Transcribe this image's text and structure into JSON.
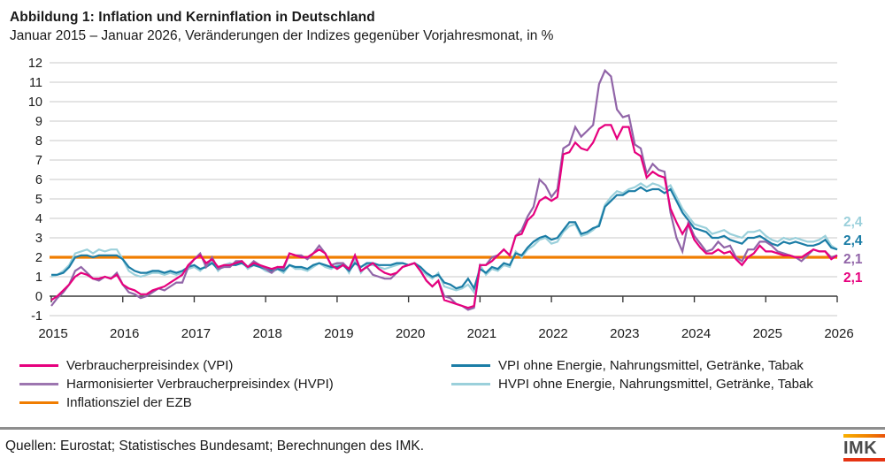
{
  "header": {
    "title": "Abbildung 1: Inflation und Kerninflation in Deutschland",
    "subtitle": "Januar 2015 – Januar 2026, Veränderungen der Indizes gegenüber Vorjahresmonat, in %"
  },
  "chart_data": {
    "type": "line",
    "x_start": "Januar 2015",
    "x_end": "Januar 2026",
    "x_tick_labels": [
      "2015",
      "2016",
      "2017",
      "2018",
      "2019",
      "2020",
      "2021",
      "2022",
      "2023",
      "2024",
      "2025",
      "2026"
    ],
    "ylim": [
      -1,
      12
    ],
    "y_ticks": [
      -1,
      0,
      1,
      2,
      3,
      4,
      5,
      6,
      7,
      8,
      9,
      10,
      11,
      12
    ],
    "unit": "%",
    "grid": "horizontal",
    "reference_line": {
      "label": "Inflationsziel der EZB",
      "value": 2.0,
      "color": "#f07d00"
    },
    "series": [
      {
        "name": "Verbraucherpreisindex (VPI)",
        "color": "#e6007e",
        "last_value_label": "2,1",
        "values": [
          -0.2,
          0.0,
          0.3,
          0.6,
          1.0,
          1.2,
          1.1,
          0.9,
          0.9,
          1.0,
          0.9,
          1.1,
          0.6,
          0.4,
          0.3,
          0.1,
          0.1,
          0.3,
          0.4,
          0.5,
          0.7,
          0.9,
          1.1,
          1.6,
          1.9,
          2.1,
          1.7,
          1.9,
          1.5,
          1.6,
          1.6,
          1.7,
          1.8,
          1.5,
          1.7,
          1.6,
          1.5,
          1.4,
          1.5,
          1.5,
          2.2,
          2.1,
          2.0,
          2.0,
          2.2,
          2.4,
          2.2,
          1.6,
          1.4,
          1.6,
          1.4,
          2.1,
          1.3,
          1.5,
          1.7,
          1.4,
          1.2,
          1.1,
          1.2,
          1.5,
          1.6,
          1.7,
          1.3,
          0.8,
          0.5,
          0.8,
          -0.2,
          -0.3,
          -0.4,
          -0.5,
          -0.6,
          -0.5,
          1.6,
          1.6,
          1.8,
          2.1,
          2.4,
          2.1,
          3.1,
          3.2,
          3.9,
          4.2,
          4.9,
          5.1,
          4.9,
          5.1,
          7.3,
          7.4,
          7.9,
          7.6,
          7.5,
          7.9,
          8.6,
          8.8,
          8.8,
          8.1,
          8.7,
          8.7,
          7.4,
          7.2,
          6.1,
          6.4,
          6.2,
          6.1,
          4.5,
          3.8,
          3.2,
          3.7,
          2.9,
          2.5,
          2.2,
          2.2,
          2.4,
          2.2,
          2.3,
          1.9,
          1.6,
          2.0,
          2.2,
          2.6,
          2.3,
          2.3,
          2.2,
          2.1,
          2.1,
          2.0,
          2.0,
          2.2,
          2.4,
          2.3,
          2.3,
          1.9,
          2.1
        ]
      },
      {
        "name": "Harmonisierter Verbraucherpreisindex (HVPI)",
        "color": "#9165a8",
        "last_value_label": "2,1",
        "values": [
          -0.5,
          -0.1,
          0.2,
          0.6,
          1.3,
          1.5,
          1.2,
          0.9,
          0.8,
          1.0,
          0.9,
          1.2,
          0.6,
          0.2,
          0.1,
          -0.1,
          0.0,
          0.2,
          0.4,
          0.3,
          0.5,
          0.7,
          0.7,
          1.5,
          1.9,
          2.2,
          1.5,
          2.0,
          1.4,
          1.5,
          1.5,
          1.8,
          1.8,
          1.5,
          1.8,
          1.6,
          1.4,
          1.2,
          1.5,
          1.4,
          2.2,
          2.1,
          2.1,
          1.9,
          2.2,
          2.6,
          2.2,
          1.6,
          1.7,
          1.7,
          1.4,
          2.1,
          1.3,
          1.5,
          1.1,
          1.0,
          0.9,
          0.9,
          1.2,
          1.5,
          1.6,
          1.7,
          1.3,
          0.8,
          0.5,
          0.8,
          0.0,
          -0.1,
          -0.4,
          -0.5,
          -0.7,
          -0.6,
          1.6,
          1.6,
          2.0,
          2.1,
          2.4,
          2.1,
          3.1,
          3.4,
          4.1,
          4.6,
          6.0,
          5.7,
          5.1,
          5.5,
          7.6,
          7.8,
          8.7,
          8.2,
          8.5,
          8.8,
          10.9,
          11.6,
          11.3,
          9.6,
          9.2,
          9.3,
          7.8,
          7.6,
          6.3,
          6.8,
          6.5,
          6.4,
          4.3,
          3.0,
          2.3,
          3.8,
          3.1,
          2.7,
          2.3,
          2.4,
          2.8,
          2.5,
          2.6,
          2.0,
          1.8,
          2.4,
          2.4,
          2.8,
          2.8,
          2.6,
          2.3,
          2.2,
          2.1,
          2.0,
          1.8,
          2.1,
          2.4,
          2.3,
          2.3,
          2.0,
          2.1
        ]
      },
      {
        "name": "VPI ohne Energie, Nahrungsmittel, Getränke, Tabak",
        "color": "#1b7da6",
        "last_value_label": "2,4",
        "values": [
          1.1,
          1.1,
          1.2,
          1.5,
          2.0,
          2.1,
          2.1,
          2.0,
          2.1,
          2.1,
          2.1,
          2.1,
          1.9,
          1.5,
          1.3,
          1.2,
          1.2,
          1.3,
          1.3,
          1.2,
          1.3,
          1.2,
          1.3,
          1.5,
          1.6,
          1.4,
          1.5,
          1.7,
          1.4,
          1.5,
          1.6,
          1.6,
          1.7,
          1.5,
          1.6,
          1.5,
          1.4,
          1.3,
          1.4,
          1.3,
          1.6,
          1.5,
          1.5,
          1.4,
          1.6,
          1.7,
          1.6,
          1.5,
          1.5,
          1.6,
          1.3,
          1.7,
          1.5,
          1.7,
          1.7,
          1.6,
          1.6,
          1.6,
          1.7,
          1.7,
          1.6,
          1.7,
          1.5,
          1.2,
          1.0,
          1.1,
          0.7,
          0.6,
          0.4,
          0.5,
          0.9,
          0.4,
          1.4,
          1.2,
          1.5,
          1.4,
          1.7,
          1.6,
          2.2,
          2.1,
          2.5,
          2.8,
          3.0,
          3.1,
          2.9,
          3.0,
          3.4,
          3.8,
          3.8,
          3.2,
          3.3,
          3.5,
          3.6,
          4.6,
          4.9,
          5.2,
          5.2,
          5.4,
          5.4,
          5.6,
          5.4,
          5.5,
          5.5,
          5.3,
          5.5,
          4.9,
          4.3,
          3.9,
          3.5,
          3.4,
          3.3,
          3.0,
          3.0,
          3.1,
          2.9,
          2.8,
          2.7,
          3.0,
          3.0,
          3.1,
          2.9,
          2.7,
          2.6,
          2.8,
          2.7,
          2.8,
          2.7,
          2.6,
          2.6,
          2.7,
          2.9,
          2.5,
          2.4
        ]
      },
      {
        "name": "HVPI ohne Energie, Nahrungsmittel, Getränke, Tabak",
        "color": "#9bd0db",
        "last_value_label": "2,4",
        "values": [
          1.0,
          1.1,
          1.3,
          1.6,
          2.2,
          2.3,
          2.4,
          2.2,
          2.4,
          2.3,
          2.4,
          2.4,
          1.9,
          1.3,
          1.1,
          1.0,
          1.1,
          1.2,
          1.2,
          1.1,
          1.2,
          1.1,
          1.2,
          1.4,
          1.5,
          1.3,
          1.6,
          1.8,
          1.3,
          1.6,
          1.7,
          1.6,
          1.8,
          1.4,
          1.6,
          1.5,
          1.3,
          1.2,
          1.4,
          1.2,
          1.6,
          1.4,
          1.4,
          1.3,
          1.5,
          1.7,
          1.5,
          1.4,
          1.6,
          1.7,
          1.2,
          1.9,
          1.2,
          1.6,
          1.6,
          1.5,
          1.4,
          1.5,
          1.6,
          1.7,
          1.6,
          1.7,
          1.4,
          1.1,
          0.9,
          1.2,
          0.5,
          0.4,
          0.3,
          0.4,
          0.6,
          0.2,
          1.6,
          1.1,
          1.4,
          1.3,
          1.6,
          1.5,
          2.3,
          2.0,
          2.4,
          2.6,
          2.9,
          3.0,
          2.7,
          2.8,
          3.3,
          3.6,
          3.7,
          3.1,
          3.2,
          3.4,
          3.7,
          4.7,
          5.1,
          5.4,
          5.3,
          5.5,
          5.6,
          5.8,
          5.6,
          5.8,
          5.7,
          5.5,
          5.7,
          5.1,
          4.5,
          4.1,
          3.7,
          3.6,
          3.5,
          3.2,
          3.3,
          3.4,
          3.2,
          3.1,
          3.0,
          3.3,
          3.3,
          3.4,
          3.1,
          2.9,
          2.8,
          3.0,
          2.9,
          3.0,
          2.9,
          2.8,
          2.8,
          2.9,
          3.1,
          2.6,
          2.4
        ]
      }
    ],
    "end_labels": [
      {
        "text": "2,4",
        "series": 3
      },
      {
        "text": "2,4",
        "series": 2
      },
      {
        "text": "2,1",
        "series": 1
      },
      {
        "text": "2,1",
        "series": 0
      }
    ]
  },
  "legend": {
    "left": [
      {
        "label": "Verbraucherpreisindex (VPI)",
        "color": "#e6007e"
      },
      {
        "label": "Harmonisierter Verbraucherpreisindex (HVPI)",
        "color": "#9d76b0"
      },
      {
        "label": "Inflationsziel der EZB",
        "color": "#f07d00"
      }
    ],
    "right": [
      {
        "label": "VPI ohne Energie, Nahrungsmittel, Getränke, Tabak",
        "color": "#1b7da6"
      },
      {
        "label": "HVPI ohne Energie, Nahrungsmittel, Getränke, Tabak",
        "color": "#9bd0db"
      }
    ]
  },
  "footer": {
    "source": "Quellen: Eurostat; Statistisches Bundesamt; Berechnungen des IMK.",
    "logo_text": "IMK"
  }
}
